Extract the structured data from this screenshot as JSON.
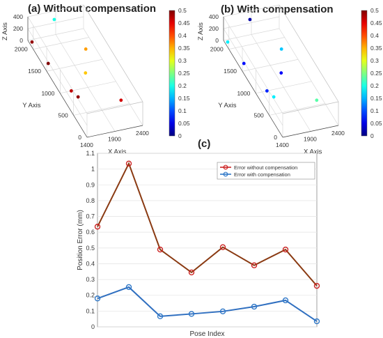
{
  "chart_data": [
    {
      "type": "scatter",
      "panel": "a",
      "title": "(a) Without compensation",
      "axis_labels": {
        "x": "X Axis",
        "y": "Y Axis",
        "z": "Z Axis"
      },
      "x_ticks": [
        "1400",
        "1900",
        "2400"
      ],
      "y_ticks": [
        "0",
        "500",
        "1000",
        "1500",
        "2000"
      ],
      "z_ticks": [
        "0",
        "200",
        "400"
      ],
      "colorbar": {
        "min": 0,
        "max": 0.5,
        "ticks": [
          "0.5",
          "0.45",
          "0.4",
          "0.35",
          "0.3",
          "0.25",
          "0.2",
          "0.15",
          "0.1",
          "0.05",
          "0"
        ]
      },
      "points": [
        {
          "x": 1450,
          "y": 2150,
          "z": 0,
          "error": 0.49
        },
        {
          "x": 1850,
          "y": 2150,
          "z": 300,
          "error": 0.2
        },
        {
          "x": 2150,
          "y": 1600,
          "z": 150,
          "error": 0.36
        },
        {
          "x": 1500,
          "y": 1650,
          "z": 0,
          "error": 0.5
        },
        {
          "x": 2000,
          "y": 1300,
          "z": 0,
          "error": 0.34
        },
        {
          "x": 1600,
          "y": 1000,
          "z": 0,
          "error": 0.47
        },
        {
          "x": 1650,
          "y": 850,
          "z": 0,
          "error": 0.49
        },
        {
          "x": 2300,
          "y": 600,
          "z": 0,
          "error": 0.46
        }
      ]
    },
    {
      "type": "scatter",
      "panel": "b",
      "title": "(b) With compensation",
      "axis_labels": {
        "x": "X Axis",
        "y": "Y Axis",
        "z": "Z Axis"
      },
      "x_ticks": [
        "1400",
        "1900",
        "2400"
      ],
      "y_ticks": [
        "0",
        "500",
        "1000",
        "1500",
        "2000"
      ],
      "z_ticks": [
        "0",
        "200",
        "400"
      ],
      "colorbar": {
        "min": 0,
        "max": 0.5,
        "ticks": [
          "0.5",
          "0.45",
          "0.4",
          "0.35",
          "0.3",
          "0.25",
          "0.2",
          "0.15",
          "0.1",
          "0.05",
          "0"
        ]
      },
      "points": [
        {
          "x": 1450,
          "y": 2150,
          "z": 0,
          "error": 0.18
        },
        {
          "x": 1850,
          "y": 2150,
          "z": 300,
          "error": 0.02
        },
        {
          "x": 2150,
          "y": 1600,
          "z": 150,
          "error": 0.16
        },
        {
          "x": 1500,
          "y": 1650,
          "z": 0,
          "error": 0.07
        },
        {
          "x": 2000,
          "y": 1300,
          "z": 0,
          "error": 0.06
        },
        {
          "x": 1600,
          "y": 1000,
          "z": 0,
          "error": 0.08
        },
        {
          "x": 1650,
          "y": 850,
          "z": 0,
          "error": 0.18
        },
        {
          "x": 2300,
          "y": 600,
          "z": 0,
          "error": 0.23
        }
      ]
    },
    {
      "type": "line",
      "panel": "c",
      "title": "(c)",
      "xlabel": "Pose Index",
      "ylabel": "Position Error (mm)",
      "ylim": [
        0,
        1.1
      ],
      "yticks": [
        0,
        0.1,
        0.2,
        0.3,
        0.4,
        0.5,
        0.6,
        0.7,
        0.8,
        0.9,
        1,
        1.1
      ],
      "legend_position": "top-right",
      "grid": true,
      "x": [
        1,
        2,
        3,
        4,
        5,
        6,
        7,
        8
      ],
      "series": [
        {
          "name": "Error without compensation",
          "color": "#cc2222",
          "values": [
            0.635,
            1.035,
            0.49,
            0.345,
            0.505,
            0.39,
            0.49,
            0.26
          ]
        },
        {
          "name": "Error with compensation",
          "color": "#2f78c8",
          "values": [
            0.18,
            0.252,
            0.067,
            0.082,
            0.098,
            0.128,
            0.168,
            0.035
          ]
        }
      ]
    }
  ]
}
